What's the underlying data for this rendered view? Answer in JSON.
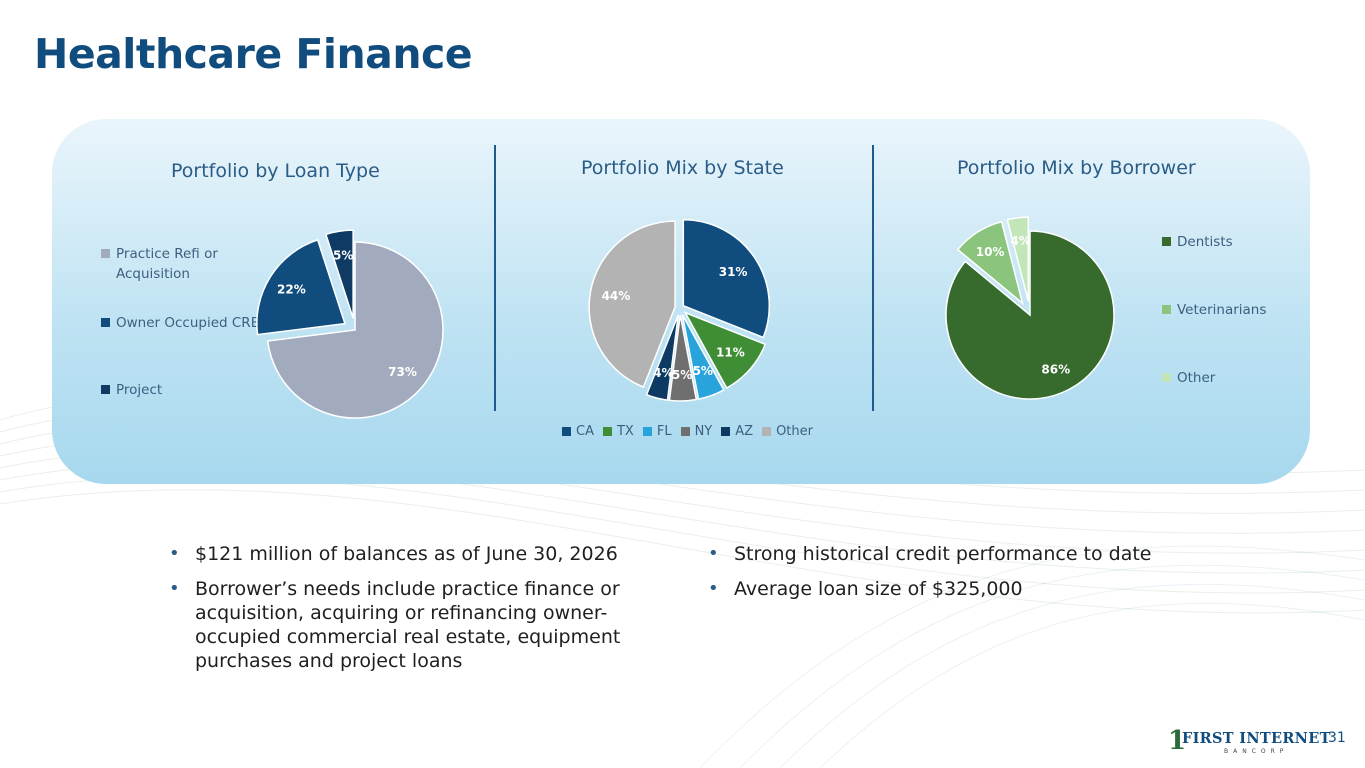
{
  "title": "Healthcare Finance",
  "colors": {
    "title": "#114c7e",
    "accent": "#2a5c86",
    "panel": "#bfe3f3"
  },
  "chart_data": [
    {
      "type": "pie",
      "title": "Portfolio by Loan Type",
      "legend_position": "left",
      "labels": [
        "Practice Refi or Acquisition",
        "Owner Occupied CRE",
        "Project"
      ],
      "values": [
        73,
        22,
        5
      ],
      "value_labels": [
        "73%",
        "22%",
        "5%"
      ],
      "colors": [
        "#a2abbe",
        "#114c7e",
        "#0e3a63"
      ],
      "exploded": true,
      "legend_colors": [
        "#a2abbe",
        "#114c7e",
        "#0e3a63"
      ]
    },
    {
      "type": "pie",
      "title": "Portfolio Mix by State",
      "legend_position": "bottom",
      "labels": [
        "CA",
        "TX",
        "FL",
        "NY",
        "AZ",
        "Other"
      ],
      "values": [
        31,
        11,
        5,
        5,
        4,
        44
      ],
      "value_labels": [
        "31%",
        "11%",
        "5%",
        "5%",
        "4%",
        "44%"
      ],
      "colors": [
        "#114c7e",
        "#3f8d34",
        "#29a3dc",
        "#6f6f6f",
        "#0c3a63",
        "#b3b3b3"
      ],
      "exploded": true,
      "legend_colors": [
        "#114c7e",
        "#3f8d34",
        "#29a3dc",
        "#6f6f6f",
        "#0c3a63",
        "#b3b3b3"
      ]
    },
    {
      "type": "pie",
      "title": "Portfolio Mix by Borrower",
      "legend_position": "right",
      "labels": [
        "Dentists",
        "Veterinarians",
        "Other"
      ],
      "values": [
        86,
        10,
        4
      ],
      "value_labels": [
        "86%",
        "10%",
        "4%"
      ],
      "colors": [
        "#366b2d",
        "#8ac47d",
        "#c3e6b8"
      ],
      "exploded": true,
      "legend_colors": [
        "#366b2d",
        "#8ac47d",
        "#c3e6b8"
      ]
    }
  ],
  "bullets_left": [
    "$121 million of balances as of June 30, 2026",
    "Borrower’s needs include practice finance or acquisition, acquiring or refinancing owner-occupied commercial real estate, equipment purchases and project loans"
  ],
  "bullets_right": [
    "Strong historical credit performance to date",
    "Average loan size of $325,000"
  ],
  "bullet_glyph": "•",
  "logo": {
    "mark": "1",
    "name": "FIRST INTERNET",
    "sub": "BANCORP"
  },
  "page_number": "31"
}
